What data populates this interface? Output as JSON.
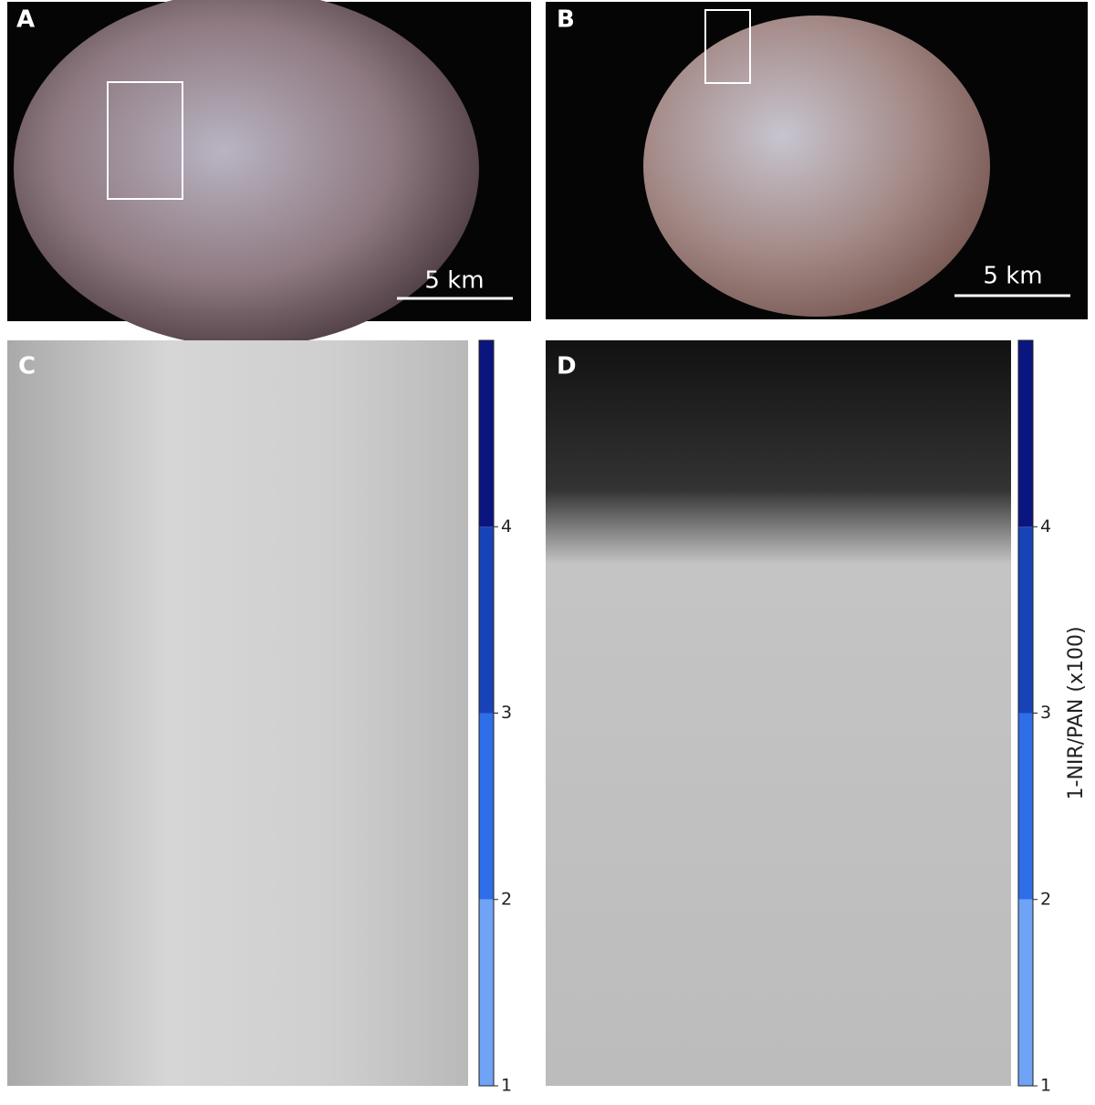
{
  "panels": [
    {
      "label": "A",
      "scale_bar": "5 km"
    },
    {
      "label": "B",
      "scale_bar": "5 km"
    },
    {
      "label": "C"
    },
    {
      "label": "D"
    }
  ],
  "colorbars": [
    {
      "ylim": [
        1,
        5
      ],
      "yticks": [
        1,
        2,
        3,
        4
      ],
      "colors": [
        "#6fa3f5",
        "#2e6ee8",
        "#1843b8",
        "#0a1580"
      ]
    },
    {
      "ylim": [
        1,
        5
      ],
      "yticks": [
        1,
        2,
        3,
        4
      ],
      "colors": [
        "#6fa3f5",
        "#2e6ee8",
        "#1843b8",
        "#0a1580"
      ],
      "label": "1-NIR/PAN (x100)"
    }
  ]
}
